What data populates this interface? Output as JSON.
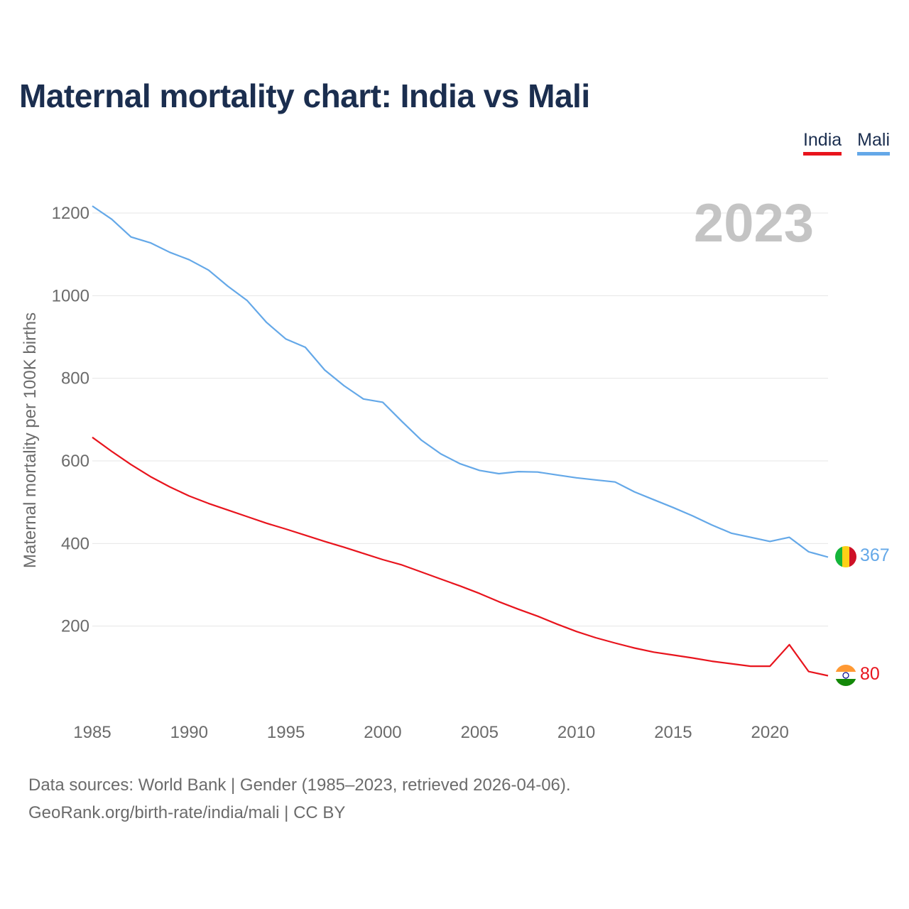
{
  "title": "Maternal mortality chart: India vs Mali",
  "year_label": "2023",
  "legend": [
    {
      "name": "India",
      "color": "#e8141d"
    },
    {
      "name": "Mali",
      "color": "#64a8e8"
    }
  ],
  "chart_data": {
    "type": "line",
    "title": "Maternal mortality chart: India vs Mali",
    "xlabel": "",
    "ylabel": "Maternal mortality per 100K births",
    "xlim": [
      1985,
      2023
    ],
    "ylim": [
      0,
      1200
    ],
    "x_ticks": [
      1985,
      1990,
      1995,
      2000,
      2005,
      2010,
      2015,
      2020
    ],
    "y_ticks": [
      200,
      400,
      600,
      800,
      1000,
      1200
    ],
    "grid": true,
    "x": [
      1985,
      1986,
      1987,
      1988,
      1989,
      1990,
      1991,
      1992,
      1993,
      1994,
      1995,
      1996,
      1997,
      1998,
      1999,
      2000,
      2001,
      2002,
      2003,
      2004,
      2005,
      2006,
      2007,
      2008,
      2009,
      2010,
      2011,
      2012,
      2013,
      2014,
      2015,
      2016,
      2017,
      2018,
      2019,
      2020,
      2021,
      2022,
      2023
    ],
    "series": [
      {
        "name": "Mali",
        "color": "#64a8e8",
        "end_label": "367",
        "values": [
          1217,
          1185,
          1142,
          1128,
          1105,
          1087,
          1062,
          1023,
          988,
          935,
          895,
          875,
          820,
          782,
          750,
          742,
          695,
          650,
          617,
          593,
          577,
          569,
          574,
          573,
          566,
          559,
          554,
          549,
          525,
          506,
          487,
          467,
          445,
          425,
          415,
          405,
          415,
          380,
          367
        ]
      },
      {
        "name": "India",
        "color": "#e8141d",
        "end_label": "80",
        "values": [
          657,
          623,
          591,
          562,
          537,
          515,
          497,
          481,
          465,
          449,
          435,
          420,
          405,
          391,
          376,
          361,
          348,
          331,
          314,
          297,
          279,
          259,
          241,
          224,
          205,
          187,
          172,
          159,
          147,
          137,
          130,
          123,
          115,
          109,
          103,
          103,
          155,
          90,
          80
        ]
      }
    ]
  },
  "source": {
    "line1": "Data sources: World Bank | Gender (1985–2023, retrieved 2026-04-06).",
    "line2": "GeoRank.org/birth-rate/india/mali | CC BY"
  }
}
